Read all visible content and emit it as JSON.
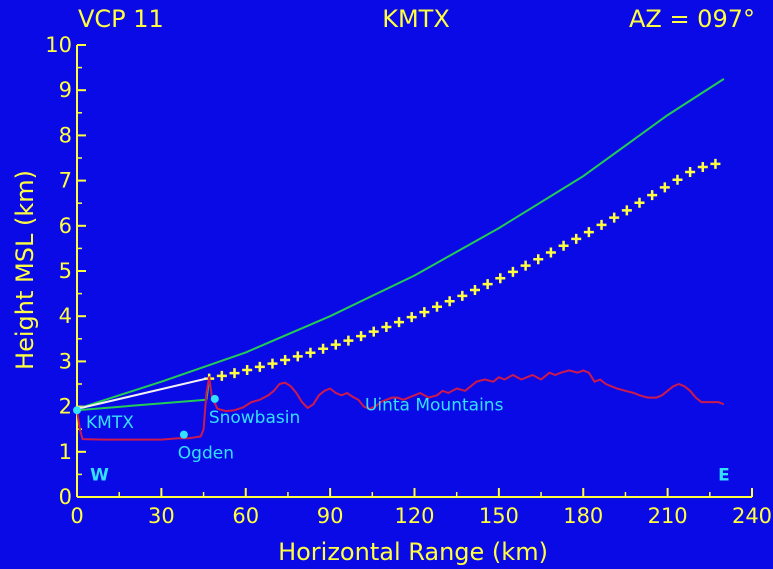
{
  "header": {
    "left": "VCP 11",
    "center": "KMTX",
    "right": "AZ = 097°"
  },
  "colors": {
    "background": "#0a0ae6",
    "text": "#ffff40",
    "label": "#33e0ff",
    "beam_upper": "#22cc55",
    "beam_center": "#ffff40",
    "beam_inner_low": "#f2f2f2",
    "terrain": "#cc1a4d"
  },
  "chart_data": {
    "type": "line",
    "title": "",
    "xlabel": "Horizontal Range (km)",
    "ylabel": "Height MSL (km)",
    "xlim": [
      0,
      240
    ],
    "ylim": [
      0,
      10
    ],
    "xticks": [
      0,
      30,
      60,
      90,
      120,
      150,
      180,
      210,
      240
    ],
    "yticks": [
      0,
      1,
      2,
      3,
      4,
      5,
      6,
      7,
      8,
      9,
      10
    ],
    "grid": false,
    "series": [
      {
        "id": "beam-top",
        "kind": "line",
        "color": "#22cc55",
        "x": [
          0,
          30,
          60,
          90,
          120,
          150,
          180,
          210,
          230
        ],
        "y": [
          1.95,
          2.55,
          3.2,
          4.0,
          4.9,
          5.95,
          7.1,
          8.45,
          9.25
        ]
      },
      {
        "id": "beam-center",
        "kind": "markers",
        "marker": "plus",
        "color": "#ffff40",
        "x": [
          47,
          51.5,
          56,
          60.5,
          65,
          69.5,
          74,
          78.5,
          83,
          87.5,
          92,
          96.5,
          101,
          105.5,
          110,
          114.5,
          119,
          123.5,
          128,
          132.5,
          137,
          141.5,
          146,
          150.5,
          155,
          159.5,
          164,
          168.5,
          173,
          177.5,
          182,
          186.5,
          191,
          195.5,
          200,
          204.5,
          209,
          213.5,
          218,
          222.5,
          227
        ],
        "y": [
          2.62,
          2.68,
          2.74,
          2.81,
          2.88,
          2.95,
          3.03,
          3.11,
          3.19,
          3.28,
          3.37,
          3.46,
          3.56,
          3.66,
          3.76,
          3.87,
          3.98,
          4.09,
          4.21,
          4.33,
          4.45,
          4.58,
          4.71,
          4.84,
          4.98,
          5.12,
          5.26,
          5.41,
          5.56,
          5.71,
          5.86,
          6.02,
          6.18,
          6.34,
          6.51,
          6.68,
          6.85,
          7.02,
          7.19,
          7.3,
          7.37
        ]
      },
      {
        "id": "beam-center-near",
        "kind": "line",
        "color": "#f2f2f2",
        "x": [
          0,
          46
        ],
        "y": [
          1.95,
          2.62
        ]
      },
      {
        "id": "beam-bottom-near",
        "kind": "line",
        "color": "#22cc55",
        "x": [
          0,
          46,
          47
        ],
        "y": [
          1.92,
          2.15,
          2.6
        ]
      },
      {
        "id": "terrain",
        "kind": "line",
        "color": "#cc1a4d",
        "x": [
          0,
          1,
          2,
          10,
          20,
          30,
          36,
          40,
          42,
          44,
          45,
          46,
          47,
          48,
          50,
          53,
          56,
          59,
          62,
          65,
          68,
          70,
          72,
          74,
          76,
          78,
          80,
          82,
          84,
          86,
          88,
          90,
          92,
          94,
          96,
          98,
          100,
          102,
          104,
          106,
          108,
          110,
          112,
          114,
          116,
          118,
          120,
          122,
          125,
          128,
          130,
          132,
          135,
          138,
          140,
          142,
          145,
          148,
          150,
          152,
          155,
          158,
          160,
          162,
          165,
          168,
          170,
          172,
          175,
          178,
          180,
          182,
          184,
          186,
          188,
          190,
          192,
          195,
          198,
          200,
          203,
          206,
          208,
          210,
          212,
          214,
          216,
          218,
          220,
          222,
          225,
          228,
          230
        ],
        "y": [
          1.92,
          1.5,
          1.28,
          1.27,
          1.27,
          1.27,
          1.3,
          1.3,
          1.32,
          1.34,
          1.5,
          2.3,
          2.65,
          2.2,
          1.95,
          1.9,
          1.92,
          1.98,
          2.1,
          2.15,
          2.25,
          2.35,
          2.5,
          2.53,
          2.45,
          2.3,
          2.1,
          1.97,
          2.05,
          2.25,
          2.35,
          2.4,
          2.3,
          2.25,
          2.3,
          2.22,
          2.15,
          2.0,
          1.95,
          2.0,
          2.1,
          2.15,
          2.2,
          2.2,
          2.15,
          2.2,
          2.25,
          2.3,
          2.2,
          2.25,
          2.35,
          2.3,
          2.4,
          2.35,
          2.45,
          2.55,
          2.6,
          2.55,
          2.65,
          2.6,
          2.7,
          2.6,
          2.65,
          2.7,
          2.6,
          2.75,
          2.7,
          2.75,
          2.8,
          2.75,
          2.8,
          2.75,
          2.55,
          2.6,
          2.5,
          2.45,
          2.4,
          2.35,
          2.3,
          2.25,
          2.2,
          2.2,
          2.25,
          2.35,
          2.45,
          2.5,
          2.45,
          2.35,
          2.2,
          2.1,
          2.1,
          2.1,
          2.05
        ]
      }
    ],
    "points": [
      {
        "label": "KMTX",
        "x": 0,
        "y": 1.92,
        "label_anchor": "right-below"
      },
      {
        "label": "Ogden",
        "x": 38,
        "y": 1.38,
        "label_anchor": "below"
      },
      {
        "label": "Snowbasin",
        "x": 49,
        "y": 2.17,
        "label_anchor": "below-right"
      }
    ],
    "annotations": [
      {
        "text": "Uinta Mountains",
        "x": 127,
        "y": 2.05
      },
      {
        "text": "W",
        "x": 8,
        "y": 0.5
      },
      {
        "text": "E",
        "x": 230,
        "y": 0.5
      }
    ]
  }
}
